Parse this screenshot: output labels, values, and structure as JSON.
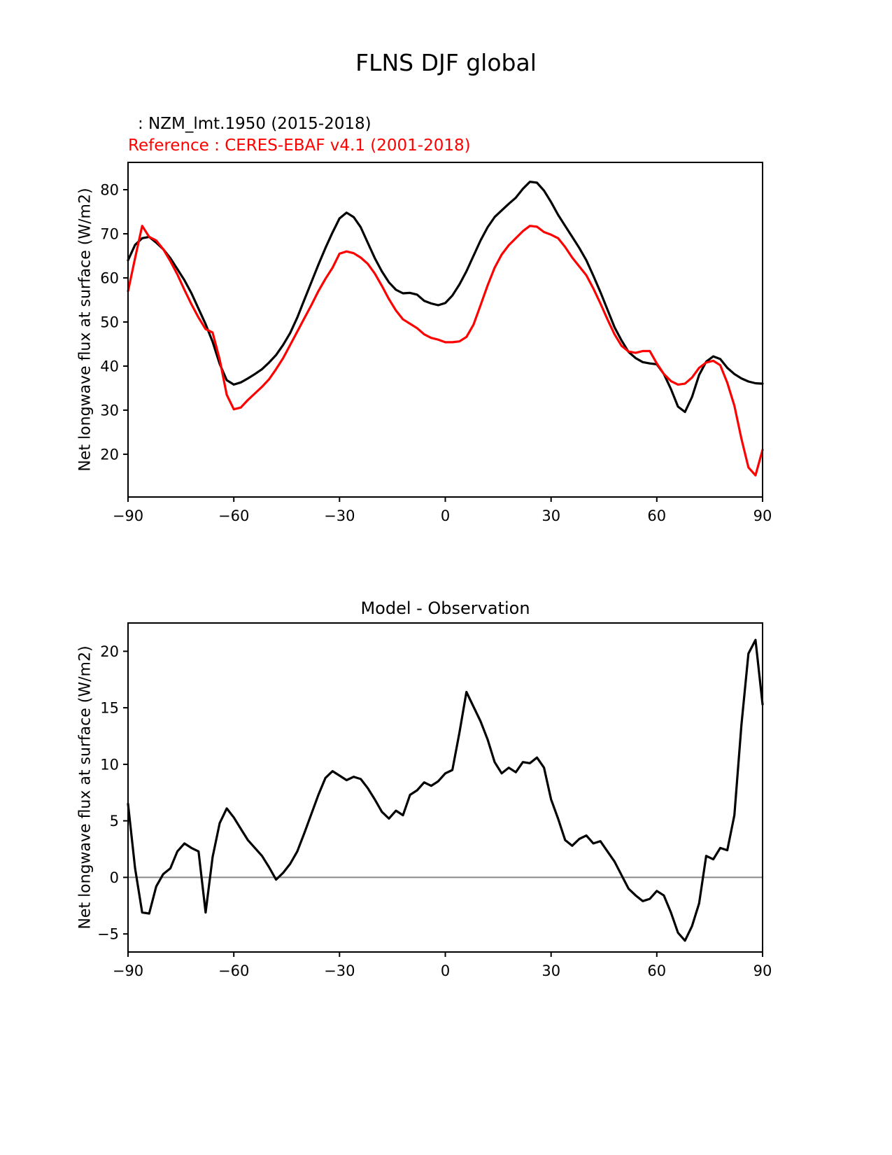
{
  "figure_title": "FLNS DJF global",
  "legend": {
    "model_label": ": NZM_lmt.1950 (2015-2018)",
    "reference_label": "Reference : CERES-EBAF v4.1 (2001-2018)"
  },
  "colors": {
    "model": "#000000",
    "reference": "#ff0000",
    "zero_line": "#888888",
    "frame": "#000000"
  },
  "chart_data": [
    {
      "type": "line",
      "title": "FLNS DJF global",
      "xlabel": "",
      "ylabel": "Net longwave flux at surface (W/m2)",
      "xlim": [
        -90,
        90
      ],
      "ylim": [
        10.3,
        86.2
      ],
      "grid": false,
      "zero_line": false,
      "xtick_values": [
        -90,
        -60,
        -30,
        0,
        30,
        60,
        90
      ],
      "xtick_labels": [
        "−90",
        "−60",
        "−30",
        "0",
        "30",
        "60",
        "90"
      ],
      "ytick_values": [
        20,
        30,
        40,
        50,
        60,
        70,
        80
      ],
      "ytick_labels": [
        "20",
        "30",
        "40",
        "50",
        "60",
        "70",
        "80"
      ],
      "x_start": -90,
      "x_step": 2,
      "series": [
        {
          "name": "NZM_lmt.1950 (2015-2018)",
          "color": "#000000",
          "values": [
            64,
            67.5,
            69,
            69.3,
            68,
            66.5,
            64.5,
            62,
            59.5,
            56.5,
            53,
            49.5,
            45.5,
            40.5,
            36.8,
            35.8,
            36.3,
            37.2,
            38.2,
            39.3,
            40.8,
            42.5,
            44.8,
            47.5,
            51,
            55,
            59,
            63,
            66.8,
            70.3,
            73.5,
            74.8,
            73.8,
            71.5,
            68,
            64.5,
            61.5,
            59,
            57.3,
            56.5,
            56.6,
            56.2,
            54.8,
            54.2,
            53.8,
            54.3,
            56,
            58.5,
            61.5,
            65,
            68.5,
            71.5,
            73.8,
            75.3,
            76.8,
            78.2,
            80.2,
            81.8,
            81.6,
            79.8,
            77.2,
            74.3,
            71.8,
            69.3,
            66.8,
            64,
            60.5,
            56.8,
            52.8,
            48.8,
            45.8,
            43.2,
            41.8,
            40.9,
            40.6,
            40.4,
            38.2,
            34.8,
            30.8,
            29.6,
            33,
            38,
            41,
            42.2,
            41.6,
            39.6,
            38.2,
            37.2,
            36.5,
            36.1,
            36
          ]
        },
        {
          "name": "CERES-EBAF v4.1 (2001-2018)",
          "color": "#ff0000",
          "values": [
            57,
            64.5,
            71.8,
            69.3,
            68.5,
            66.5,
            63.8,
            60.8,
            57.3,
            54,
            51,
            48.4,
            47.6,
            41.5,
            33.5,
            30.2,
            30.6,
            32.3,
            33.8,
            35.3,
            37,
            39.3,
            41.8,
            44.8,
            47.8,
            50.8,
            53.8,
            57,
            59.8,
            62.3,
            65.5,
            66,
            65.6,
            64.6,
            63.2,
            61,
            58.2,
            55.2,
            52.6,
            50.6,
            49.6,
            48.6,
            47.2,
            46.4,
            46,
            45.4,
            45.4,
            45.6,
            46.6,
            49.4,
            53.8,
            58.3,
            62.3,
            65.3,
            67.4,
            69,
            70.6,
            71.8,
            71.6,
            70.4,
            69.8,
            69,
            67,
            64.6,
            62.6,
            60.6,
            57.6,
            54.2,
            50.6,
            47.2,
            44.6,
            43.3,
            43,
            43.4,
            43.4,
            40.6,
            38.2,
            36.6,
            35.8,
            36,
            37.4,
            39.6,
            40.8,
            41.2,
            40.2,
            36.2,
            31,
            23.5,
            17,
            15.2,
            21
          ]
        }
      ]
    },
    {
      "type": "line",
      "title": "Model - Observation",
      "xlabel": "",
      "ylabel": "Net longwave flux at surface (W/m2)",
      "xlim": [
        -90,
        90
      ],
      "ylim": [
        -6.6,
        22.5
      ],
      "grid": false,
      "zero_line": true,
      "xtick_values": [
        -90,
        -60,
        -30,
        0,
        30,
        60,
        90
      ],
      "xtick_labels": [
        "−90",
        "−60",
        "−30",
        "0",
        "30",
        "60",
        "90"
      ],
      "ytick_values": [
        -5,
        0,
        5,
        10,
        15,
        20
      ],
      "ytick_labels": [
        "−5",
        "0",
        "5",
        "10",
        "15",
        "20"
      ],
      "x_start": -90,
      "x_step": 2,
      "series": [
        {
          "name": "Model - Observation",
          "color": "#000000",
          "values": [
            6.5,
            0.8,
            -3.1,
            -3.2,
            -0.8,
            0.3,
            0.8,
            2.3,
            3,
            2.6,
            2.3,
            -3.1,
            1.8,
            4.8,
            6.1,
            5.3,
            4.3,
            3.3,
            2.6,
            1.9,
            0.9,
            -0.2,
            0.4,
            1.2,
            2.3,
            3.9,
            5.6,
            7.3,
            8.8,
            9.4,
            9,
            8.6,
            8.9,
            8.7,
            7.9,
            6.9,
            5.8,
            5.2,
            5.9,
            5.5,
            7.3,
            7.7,
            8.4,
            8.1,
            8.5,
            9.2,
            9.5,
            12.8,
            16.4,
            15.1,
            13.8,
            12.2,
            10.2,
            9.2,
            9.7,
            9.3,
            10.2,
            10.1,
            10.6,
            9.7,
            6.9,
            5.2,
            3.3,
            2.8,
            3.4,
            3.7,
            3,
            3.2,
            2.3,
            1.4,
            0.2,
            -1,
            -1.6,
            -2.1,
            -1.9,
            -1.2,
            -1.6,
            -3.1,
            -4.9,
            -5.6,
            -4.3,
            -2.3,
            1.9,
            1.6,
            2.6,
            2.4,
            5.5,
            13.5,
            19.8,
            21,
            15.3
          ]
        }
      ]
    }
  ]
}
